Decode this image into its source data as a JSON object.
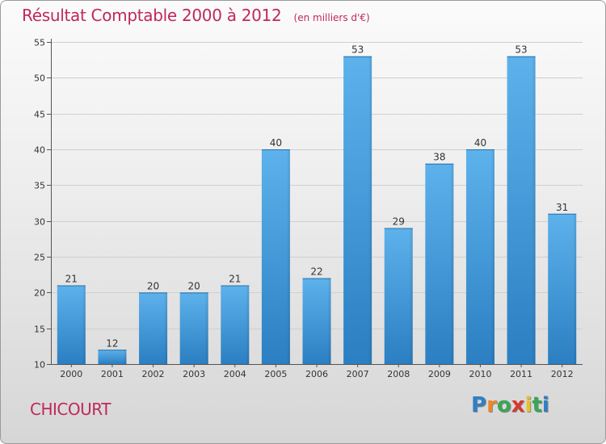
{
  "chart_data": {
    "type": "bar",
    "title": "Résultat Comptable 2000 à 2012",
    "subtitle": "(en milliers d'€)",
    "categories": [
      "2000",
      "2001",
      "2002",
      "2003",
      "2004",
      "2005",
      "2006",
      "2007",
      "2008",
      "2009",
      "2010",
      "2011",
      "2012"
    ],
    "values": [
      21,
      12,
      20,
      20,
      21,
      40,
      22,
      53,
      29,
      38,
      40,
      53,
      31
    ],
    "ylim": [
      10,
      55
    ],
    "yticks": [
      10,
      15,
      20,
      25,
      30,
      35,
      40,
      45,
      50,
      55
    ],
    "xlabel": "",
    "ylabel": "",
    "grid": true,
    "bar_color": "#4a9ede"
  },
  "footer": {
    "commune": "CHICOURT",
    "logo_letters": [
      "P",
      "r",
      "o",
      "x",
      "i",
      "t",
      "i"
    ],
    "logo_colors": [
      "#2f7fc4",
      "#e8892a",
      "#3aa655",
      "#d63a2f",
      "#e8c12a",
      "#3aa655",
      "#2f7fc4"
    ]
  }
}
